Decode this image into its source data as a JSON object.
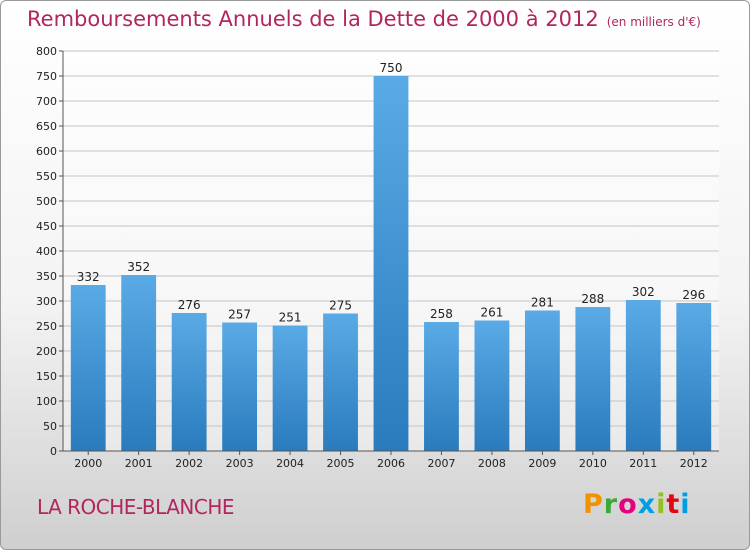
{
  "header": {
    "title": "Remboursements Annuels de la Dette de 2000 à 2012",
    "unit": "(en milliers d'€)"
  },
  "footer": {
    "commune": "LA ROCHE-BLANCHE",
    "brand": [
      "P",
      "r",
      "o",
      "x",
      "i",
      "t",
      "i"
    ],
    "brand_colors": [
      "#f39200",
      "#3aa935",
      "#e5007e",
      "#009fe3",
      "#95c11f",
      "#e30613",
      "#009fe3"
    ]
  },
  "chart_data": {
    "type": "bar",
    "title": "Remboursements Annuels de la Dette de 2000 à 2012",
    "subtitle": "(en milliers d'€)",
    "categories": [
      "2000",
      "2001",
      "2002",
      "2003",
      "2004",
      "2005",
      "2006",
      "2007",
      "2008",
      "2009",
      "2010",
      "2011",
      "2012"
    ],
    "values": [
      332,
      352,
      276,
      257,
      251,
      275,
      750,
      258,
      261,
      281,
      288,
      302,
      296
    ],
    "ylim": [
      0,
      800
    ],
    "yticks": [
      0,
      50,
      100,
      150,
      200,
      250,
      300,
      350,
      400,
      450,
      500,
      550,
      600,
      650,
      700,
      750,
      800
    ],
    "grid": true,
    "bar_color_top": "#5aaae6",
    "bar_color_bottom": "#2a7bbd",
    "legend": "none"
  }
}
